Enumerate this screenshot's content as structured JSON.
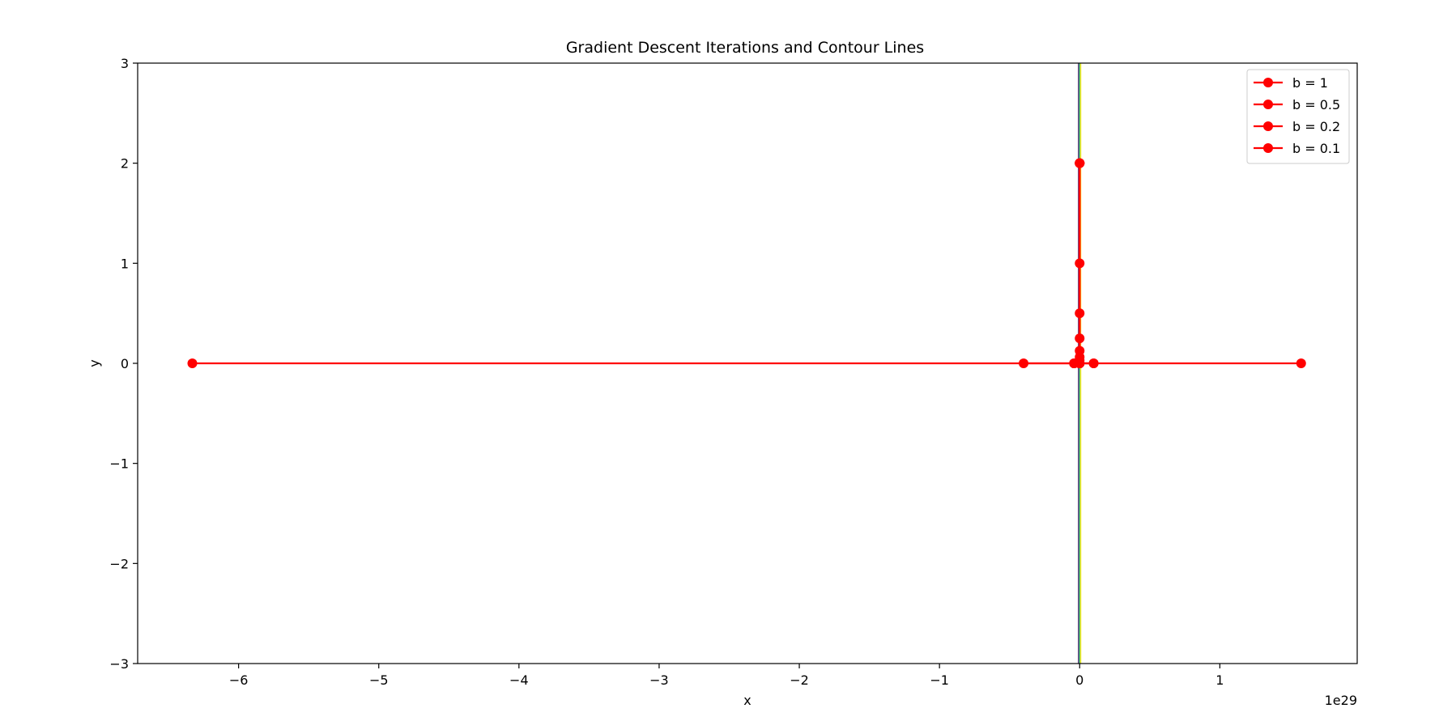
{
  "chart_data": {
    "type": "line",
    "title": "Gradient Descent Iterations and Contour Lines",
    "xlabel": "x",
    "ylabel": "y",
    "x_offset_label": "1e29",
    "x_scale_exponent": 29,
    "xlim": [
      -6.72,
      1.98
    ],
    "ylim": [
      -3,
      3
    ],
    "xticks": [
      -6,
      -5,
      -4,
      -3,
      -2,
      -1,
      0,
      1
    ],
    "xtick_labels": [
      "−6",
      "−5",
      "−4",
      "−3",
      "−2",
      "−1",
      "0",
      "1"
    ],
    "yticks": [
      -3,
      -2,
      -1,
      0,
      1,
      2,
      3
    ],
    "ytick_labels": [
      "−3",
      "−2",
      "−1",
      "0",
      "1",
      "2",
      "3"
    ],
    "grid": false,
    "legend_position": "top-right",
    "series": [
      {
        "name": "b = 1",
        "color": "#ff0000",
        "points": [
          [
            0,
            2
          ],
          [
            0,
            1
          ],
          [
            0,
            0.5
          ],
          [
            0,
            0.25
          ],
          [
            0,
            0.125
          ],
          [
            0,
            0.0625
          ],
          [
            0,
            0.03
          ],
          [
            0,
            0
          ]
        ]
      },
      {
        "name": "b = 0.5",
        "color": "#ff0000",
        "points": [
          [
            0,
            2
          ],
          [
            0,
            0
          ],
          [
            0.1,
            0
          ],
          [
            -0.04,
            0
          ],
          [
            0,
            0
          ]
        ]
      },
      {
        "name": "b = 0.2",
        "color": "#ff0000",
        "points": [
          [
            0,
            2
          ],
          [
            0,
            0
          ],
          [
            -0.4,
            0
          ],
          [
            0,
            0
          ],
          [
            0.1,
            0
          ],
          [
            -0.04,
            0
          ]
        ]
      },
      {
        "name": "b = 0.1",
        "color": "#ff0000",
        "points": [
          [
            0,
            2
          ],
          [
            0,
            0
          ],
          [
            -0.04,
            0
          ],
          [
            1.58,
            0
          ],
          [
            -6.33,
            0
          ]
        ]
      }
    ],
    "contours": [
      {
        "x": -0.008,
        "color": "#440154"
      },
      {
        "x": -0.004,
        "color": "#31688e"
      },
      {
        "x": 0.0,
        "color": "#35b779"
      },
      {
        "x": 0.004,
        "color": "#90d743"
      },
      {
        "x": 0.008,
        "color": "#fde725"
      }
    ]
  }
}
